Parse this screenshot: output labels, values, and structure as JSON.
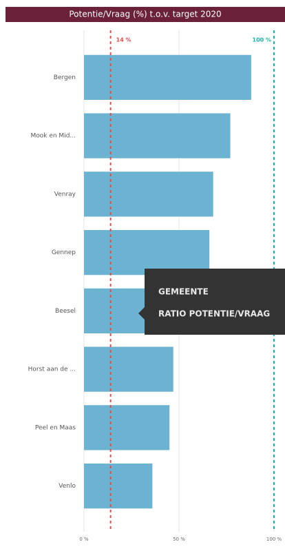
{
  "chart_data": {
    "type": "hbar",
    "title": "Potentie/Vraag (%) t.o.v. target 2020",
    "categories": [
      "Bergen",
      "Mook en Mid...",
      "Venray",
      "Gennep",
      "Beesel",
      "Horst aan de ...",
      "Peel en Maas",
      "Venlo"
    ],
    "values": [
      88,
      77,
      68,
      66,
      60,
      47,
      45,
      36
    ],
    "color": "#6cb2d1",
    "xlim": [
      0,
      100
    ],
    "xticks": [
      {
        "value": 0,
        "label": "0 %"
      },
      {
        "value": 50,
        "label": "50 %"
      },
      {
        "value": 100,
        "label": "100 %"
      }
    ],
    "grid": true,
    "reference_lines": [
      {
        "value": 14,
        "label": "14 %",
        "color": "#e8494a"
      },
      {
        "value": 100,
        "label": "100 %",
        "color": "#19b5a6"
      }
    ],
    "tooltip": {
      "lines": [
        "GEMEENTE",
        "RATIO POTENTIE/VRAAG"
      ]
    }
  }
}
